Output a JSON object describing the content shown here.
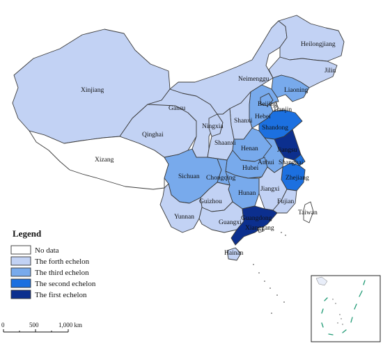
{
  "colors": {
    "no_data": "#ffffff",
    "fourth": "#c2d2f4",
    "third": "#78aaec",
    "second": "#1c70e0",
    "first": "#0c2f8e",
    "border": "#3a3a3a"
  },
  "legend": {
    "title": "Legend",
    "items": [
      {
        "key": "no_data",
        "label": "No data"
      },
      {
        "key": "fourth",
        "label": "The forth echelon"
      },
      {
        "key": "third",
        "label": "The third echelon"
      },
      {
        "key": "second",
        "label": "The second echelon"
      },
      {
        "key": "first",
        "label": "The first echelon"
      }
    ]
  },
  "scale_bar": {
    "labels": [
      "0",
      "500",
      "1,000 km"
    ]
  },
  "provinces": [
    {
      "name": "Xinjiang",
      "echelon": "fourth"
    },
    {
      "name": "Xizang",
      "echelon": "no_data"
    },
    {
      "name": "Qinghai",
      "echelon": "fourth"
    },
    {
      "name": "Gansu",
      "echelon": "fourth"
    },
    {
      "name": "Neimenggu",
      "echelon": "fourth"
    },
    {
      "name": "Heilongjiang",
      "echelon": "fourth"
    },
    {
      "name": "Jilin",
      "echelon": "fourth"
    },
    {
      "name": "Liaoning",
      "echelon": "third"
    },
    {
      "name": "Beijing",
      "echelon": "third"
    },
    {
      "name": "Tianjin",
      "echelon": "no_data"
    },
    {
      "name": "Hebei",
      "echelon": "third"
    },
    {
      "name": "Ningxia",
      "echelon": "fourth"
    },
    {
      "name": "Shanxi",
      "echelon": "fourth"
    },
    {
      "name": "Shaanxi",
      "echelon": "fourth"
    },
    {
      "name": "Shandong",
      "echelon": "second"
    },
    {
      "name": "Henan",
      "echelon": "third"
    },
    {
      "name": "Jiangsu",
      "echelon": "first"
    },
    {
      "name": "Anhui",
      "echelon": "third"
    },
    {
      "name": "Shanghai",
      "echelon": "second"
    },
    {
      "name": "Hubei",
      "echelon": "third"
    },
    {
      "name": "Sichuan",
      "echelon": "third"
    },
    {
      "name": "Chongqing",
      "echelon": "third"
    },
    {
      "name": "Zhejiang",
      "echelon": "second"
    },
    {
      "name": "Hunan",
      "echelon": "third"
    },
    {
      "name": "Jiangxi",
      "echelon": "fourth"
    },
    {
      "name": "Fujian",
      "echelon": "fourth"
    },
    {
      "name": "Taiwan",
      "echelon": "no_data"
    },
    {
      "name": "Guizhou",
      "echelon": "fourth"
    },
    {
      "name": "Yunnan",
      "echelon": "fourth"
    },
    {
      "name": "Guangxi",
      "echelon": "fourth"
    },
    {
      "name": "Guangdong",
      "echelon": "first"
    },
    {
      "name": "Xianggang",
      "echelon": "no_data"
    },
    {
      "name": "Hainan",
      "echelon": "fourth"
    }
  ]
}
